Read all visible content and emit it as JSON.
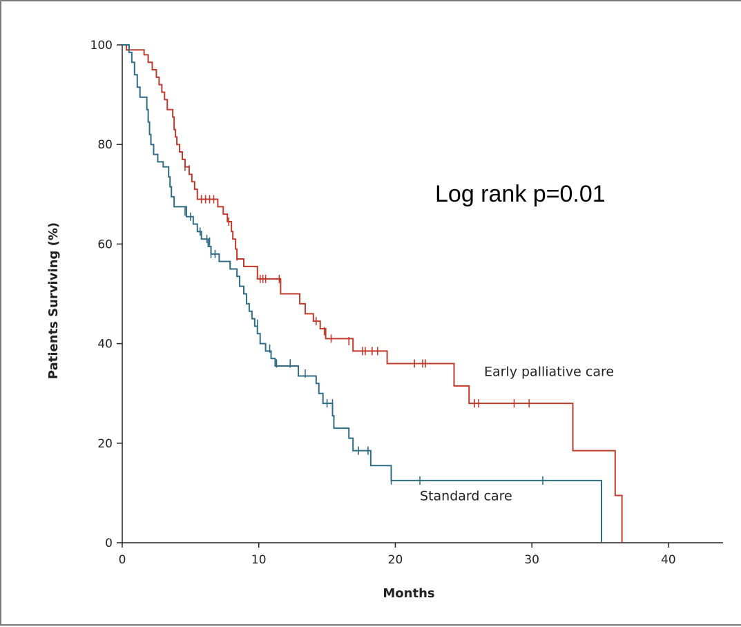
{
  "chart_data": {
    "type": "line",
    "subtype": "kaplan-meier",
    "xlabel": "Months",
    "ylabel": "Patients Surviving (%)",
    "xlim": [
      0,
      44
    ],
    "ylim": [
      0,
      100
    ],
    "xticks": [
      0,
      10,
      20,
      30,
      40
    ],
    "yticks": [
      0,
      20,
      40,
      60,
      80,
      100
    ],
    "annotation": "Log rank p=0.01",
    "grid": false,
    "legend": "none",
    "series": [
      {
        "name": "Early palliative care",
        "color": "#c0392b",
        "label_position": [
          26.5,
          33.5
        ],
        "steps": [
          [
            0,
            100
          ],
          [
            0.3,
            99
          ],
          [
            1.6,
            98
          ],
          [
            1.9,
            96.5
          ],
          [
            2.2,
            95
          ],
          [
            2.5,
            93.5
          ],
          [
            2.7,
            92
          ],
          [
            2.9,
            90.5
          ],
          [
            3.1,
            89
          ],
          [
            3.3,
            87
          ],
          [
            3.7,
            85.5
          ],
          [
            3.8,
            83
          ],
          [
            3.9,
            81.5
          ],
          [
            4.0,
            80
          ],
          [
            4.2,
            78.5
          ],
          [
            4.4,
            77
          ],
          [
            4.6,
            75.5
          ],
          [
            4.9,
            74
          ],
          [
            5.1,
            72.5
          ],
          [
            5.3,
            71
          ],
          [
            5.5,
            69
          ],
          [
            7.0,
            67.5
          ],
          [
            7.4,
            66
          ],
          [
            7.7,
            64.5
          ],
          [
            8.0,
            62.5
          ],
          [
            8.1,
            61
          ],
          [
            8.3,
            59
          ],
          [
            8.4,
            57
          ],
          [
            8.9,
            55.5
          ],
          [
            9.9,
            53
          ],
          [
            11.6,
            50
          ],
          [
            13.0,
            48
          ],
          [
            13.4,
            46
          ],
          [
            14.0,
            44.5
          ],
          [
            14.5,
            43
          ],
          [
            14.9,
            41
          ],
          [
            16.9,
            38.5
          ],
          [
            19.4,
            36
          ],
          [
            24.3,
            31.5
          ],
          [
            25.4,
            28
          ],
          [
            33.0,
            18.5
          ],
          [
            36.1,
            9.5
          ],
          [
            36.6,
            0
          ]
        ],
        "end_x": 36.6,
        "censors": [
          [
            4.6,
            75.5
          ],
          [
            4.9,
            75.0
          ],
          [
            5.8,
            69
          ],
          [
            6.1,
            69
          ],
          [
            6.4,
            69
          ],
          [
            6.7,
            69
          ],
          [
            7.8,
            64.5
          ],
          [
            8.4,
            57.5
          ],
          [
            10.1,
            53
          ],
          [
            10.3,
            53
          ],
          [
            10.5,
            53
          ],
          [
            11.5,
            53
          ],
          [
            14.2,
            44.5
          ],
          [
            14.8,
            42.5
          ],
          [
            15.3,
            41
          ],
          [
            16.6,
            40.5
          ],
          [
            17.6,
            38.5
          ],
          [
            17.8,
            38.5
          ],
          [
            18.3,
            38.5
          ],
          [
            18.7,
            38.5
          ],
          [
            21.4,
            36
          ],
          [
            22.0,
            36
          ],
          [
            22.2,
            36
          ],
          [
            25.8,
            28
          ],
          [
            26.1,
            28
          ],
          [
            28.7,
            28
          ],
          [
            29.8,
            28
          ]
        ]
      },
      {
        "name": "Standard care",
        "color": "#2e6b85",
        "label_position": [
          21.8,
          8.5
        ],
        "steps": [
          [
            0,
            100
          ],
          [
            0.5,
            98.5
          ],
          [
            0.7,
            96.5
          ],
          [
            0.9,
            94
          ],
          [
            1.1,
            91.5
          ],
          [
            1.3,
            89.5
          ],
          [
            1.8,
            87
          ],
          [
            1.9,
            84.5
          ],
          [
            2.0,
            82
          ],
          [
            2.1,
            80
          ],
          [
            2.3,
            78
          ],
          [
            2.6,
            76.5
          ],
          [
            3.0,
            75.5
          ],
          [
            3.4,
            73.5
          ],
          [
            3.5,
            71.5
          ],
          [
            3.6,
            69.5
          ],
          [
            3.8,
            67.5
          ],
          [
            4.7,
            65.5
          ],
          [
            5.2,
            64
          ],
          [
            5.5,
            62.5
          ],
          [
            5.8,
            61
          ],
          [
            6.3,
            59.5
          ],
          [
            6.5,
            58
          ],
          [
            7.1,
            56.5
          ],
          [
            7.9,
            55
          ],
          [
            8.4,
            53.5
          ],
          [
            8.6,
            51.5
          ],
          [
            8.9,
            50
          ],
          [
            9.1,
            48
          ],
          [
            9.3,
            46.5
          ],
          [
            9.5,
            45
          ],
          [
            9.7,
            43.5
          ],
          [
            9.9,
            42
          ],
          [
            10.1,
            40
          ],
          [
            10.5,
            38.5
          ],
          [
            10.9,
            37
          ],
          [
            11.2,
            35.5
          ],
          [
            12.9,
            33.5
          ],
          [
            14.2,
            32
          ],
          [
            14.4,
            30
          ],
          [
            14.7,
            28
          ],
          [
            15.4,
            25.5
          ],
          [
            15.5,
            23
          ],
          [
            16.6,
            21
          ],
          [
            16.9,
            18.5
          ],
          [
            18.2,
            15.5
          ],
          [
            19.7,
            12.5
          ],
          [
            35.1,
            0
          ]
        ],
        "end_x": 35.1,
        "censors": [
          [
            4.6,
            66.5
          ],
          [
            5.0,
            65.5
          ],
          [
            5.7,
            62.5
          ],
          [
            6.2,
            61
          ],
          [
            6.4,
            60.5
          ],
          [
            6.5,
            58
          ],
          [
            6.8,
            58
          ],
          [
            9.9,
            44
          ],
          [
            10.8,
            39
          ],
          [
            11.3,
            36
          ],
          [
            12.3,
            36
          ],
          [
            13.4,
            34
          ],
          [
            15.0,
            28
          ],
          [
            15.4,
            28
          ],
          [
            17.3,
            18.5
          ],
          [
            18.0,
            18.5
          ],
          [
            19.7,
            12.5
          ],
          [
            21.8,
            12.5
          ],
          [
            30.8,
            12.5
          ]
        ]
      }
    ]
  }
}
